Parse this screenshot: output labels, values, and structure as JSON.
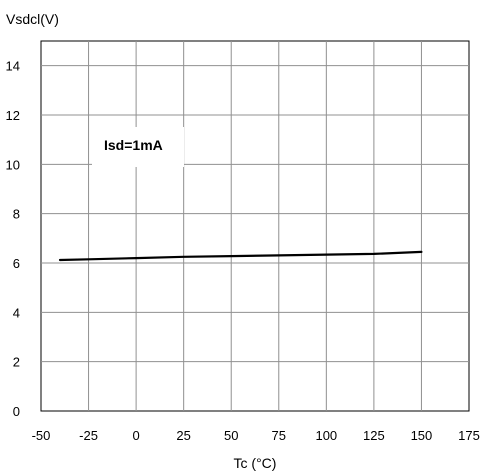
{
  "chart_data": {
    "type": "line",
    "title": "",
    "ylabel": "Vsdcl(V)",
    "xlabel": "Tc (°C)",
    "xlim": [
      -50,
      175
    ],
    "ylim": [
      0,
      15
    ],
    "x_ticks": [
      "-50",
      "-25",
      "0",
      "25",
      "50",
      "75",
      "100",
      "125",
      "150",
      "175"
    ],
    "y_ticks": [
      "0",
      "2",
      "4",
      "6",
      "8",
      "10",
      "12",
      "14"
    ],
    "grid": true,
    "annotation": "Isd=1mA",
    "series": [
      {
        "x": [
          -40,
          -25,
          0,
          25,
          50,
          75,
          100,
          125,
          150
        ],
        "y": [
          6.12,
          6.15,
          6.2,
          6.25,
          6.28,
          6.31,
          6.34,
          6.37,
          6.45
        ],
        "color": "#000000"
      }
    ]
  }
}
